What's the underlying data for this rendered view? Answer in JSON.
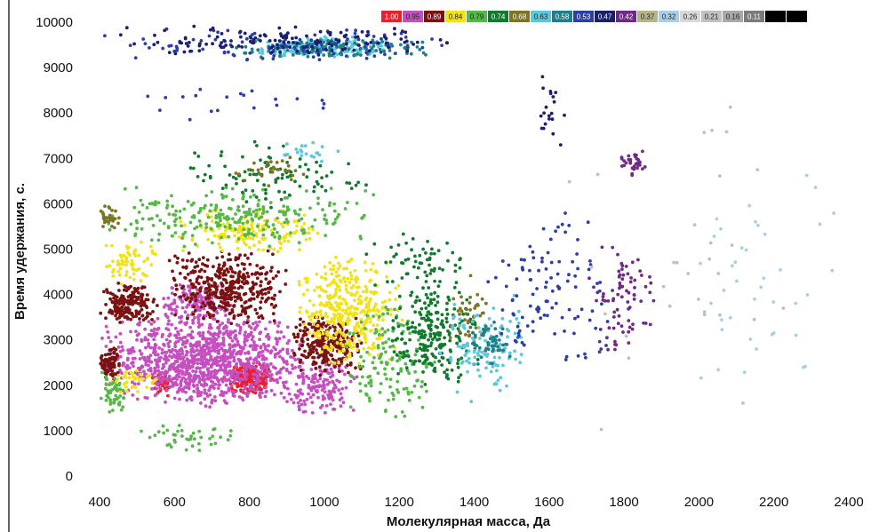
{
  "chart_data": {
    "type": "scatter",
    "title": "",
    "xlabel": "Молекулярная масса, Да",
    "ylabel": "Время удержания, с.",
    "xlim": [
      400,
      2400
    ],
    "ylim": [
      0,
      10000
    ],
    "x_ticks": [
      "400",
      "600",
      "800",
      "1000",
      "1200",
      "1400",
      "1600",
      "1800",
      "2000",
      "2200",
      "2400"
    ],
    "y_ticks": [
      "0",
      "1000",
      "2000",
      "3000",
      "4000",
      "5000",
      "6000",
      "7000",
      "8000",
      "9000",
      "10000"
    ],
    "grid": false,
    "legend_position": "top-right",
    "legend": [
      {
        "label": "1.00",
        "color": "#e8202a"
      },
      {
        "label": "0.95",
        "color": "#c64fc0"
      },
      {
        "label": "0.89",
        "color": "#7a1212"
      },
      {
        "label": "0.84",
        "color": "#f2e218"
      },
      {
        "label": "0.79",
        "color": "#56b848"
      },
      {
        "label": "0.74",
        "color": "#117a2e"
      },
      {
        "label": "0.68",
        "color": "#7d7424"
      },
      {
        "label": "0.63",
        "color": "#5bc8de"
      },
      {
        "label": "0.58",
        "color": "#1f7f88"
      },
      {
        "label": "0.53",
        "color": "#2a3fa8"
      },
      {
        "label": "0.47",
        "color": "#1b1f6e"
      },
      {
        "label": "0.42",
        "color": "#6e2a86"
      },
      {
        "label": "0.37",
        "color": "#b5b58a"
      },
      {
        "label": "0.32",
        "color": "#a9cfe8"
      },
      {
        "label": "0.26",
        "color": "#d8d8d8"
      },
      {
        "label": "0.21",
        "color": "#c0c0c0"
      },
      {
        "label": "0.16",
        "color": "#a8a8a8"
      },
      {
        "label": "0.11",
        "color": "#7a7a7a"
      },
      {
        "label": "",
        "color": "#000000"
      },
      {
        "label": "",
        "color": "#000000"
      }
    ],
    "series": [
      {
        "label": "1.00",
        "color": "#e8202a",
        "clusters": [
          {
            "x": [
              745,
              865
            ],
            "y": [
              1800,
              2500
            ],
            "n": 220
          },
          {
            "x": [
              540,
              600
            ],
            "y": [
              1700,
              2300
            ],
            "n": 40
          }
        ]
      },
      {
        "label": "0.95",
        "color": "#c64fc0",
        "clusters": [
          {
            "x": [
              400,
              960
            ],
            "y": [
              1500,
              3600
            ],
            "n": 1100
          },
          {
            "x": [
              560,
              760
            ],
            "y": [
              3400,
              4300
            ],
            "n": 160
          },
          {
            "x": [
              880,
              1100
            ],
            "y": [
              1300,
              2700
            ],
            "n": 150
          }
        ]
      },
      {
        "label": "0.89",
        "color": "#7a1212",
        "clusters": [
          {
            "x": [
              400,
              560
            ],
            "y": [
              3300,
              4300
            ],
            "n": 180
          },
          {
            "x": [
              580,
              900
            ],
            "y": [
              3300,
              5000
            ],
            "n": 380
          },
          {
            "x": [
              900,
              1110
            ],
            "y": [
              2200,
              3600
            ],
            "n": 260
          },
          {
            "x": [
              400,
              460
            ],
            "y": [
              2100,
              2900
            ],
            "n": 80
          }
        ]
      },
      {
        "label": "0.84",
        "color": "#f2e218",
        "clusters": [
          {
            "x": [
              920,
              1210
            ],
            "y": [
              2400,
              4900
            ],
            "n": 380
          },
          {
            "x": [
              600,
              1000
            ],
            "y": [
              4900,
              5900
            ],
            "n": 160
          },
          {
            "x": [
              400,
              560
            ],
            "y": [
              4200,
              5200
            ],
            "n": 70
          },
          {
            "x": [
              420,
              560
            ],
            "y": [
              1800,
              2400
            ],
            "n": 40
          }
        ]
      },
      {
        "label": "0.79",
        "color": "#56b848",
        "clusters": [
          {
            "x": [
              400,
              1150
            ],
            "y": [
              5000,
              6400
            ],
            "n": 260
          },
          {
            "x": [
              1050,
              1300
            ],
            "y": [
              1100,
              4000
            ],
            "n": 140
          },
          {
            "x": [
              400,
              480
            ],
            "y": [
              1300,
              2400
            ],
            "n": 50
          },
          {
            "x": [
              500,
              760
            ],
            "y": [
              500,
              1200
            ],
            "n": 40
          }
        ]
      },
      {
        "label": "0.74",
        "color": "#117a2e",
        "clusters": [
          {
            "x": [
              1170,
              1420
            ],
            "y": [
              1900,
              4300
            ],
            "n": 240
          },
          {
            "x": [
              600,
              1150
            ],
            "y": [
              5900,
              7400
            ],
            "n": 100
          },
          {
            "x": [
              1100,
              1400
            ],
            "y": [
              4100,
              5400
            ],
            "n": 60
          }
        ]
      },
      {
        "label": "0.68",
        "color": "#7d7424",
        "clusters": [
          {
            "x": [
              400,
              460
            ],
            "y": [
              5400,
              6000
            ],
            "n": 30
          },
          {
            "x": [
              750,
              960
            ],
            "y": [
              6300,
              7100
            ],
            "n": 30
          },
          {
            "x": [
              1320,
              1460
            ],
            "y": [
              2600,
              4600
            ],
            "n": 40
          }
        ]
      },
      {
        "label": "0.63",
        "color": "#5bc8de",
        "clusters": [
          {
            "x": [
              800,
              1210
            ],
            "y": [
              9200,
              9700
            ],
            "n": 170
          },
          {
            "x": [
              1300,
              1560
            ],
            "y": [
              1600,
              4000
            ],
            "n": 120
          },
          {
            "x": [
              850,
              1060
            ],
            "y": [
              6800,
              7400
            ],
            "n": 20
          }
        ]
      },
      {
        "label": "0.58",
        "color": "#1f7f88",
        "clusters": [
          {
            "x": [
              730,
              1300
            ],
            "y": [
              9200,
              9650
            ],
            "n": 140
          },
          {
            "x": [
              1380,
              1520
            ],
            "y": [
              2400,
              3400
            ],
            "n": 50
          }
        ]
      },
      {
        "label": "0.53",
        "color": "#2a3fa8",
        "clusters": [
          {
            "x": [
              1420,
              1780
            ],
            "y": [
              2400,
              6000
            ],
            "n": 110
          },
          {
            "x": [
              400,
              1400
            ],
            "y": [
              9100,
              9900
            ],
            "n": 100
          },
          {
            "x": [
              440,
              1120
            ],
            "y": [
              7700,
              8600
            ],
            "n": 20
          }
        ]
      },
      {
        "label": "0.47",
        "color": "#1b1f6e",
        "clusters": [
          {
            "x": [
              400,
              1400
            ],
            "y": [
              9200,
              9950
            ],
            "n": 140
          },
          {
            "x": [
              1560,
              1650
            ],
            "y": [
              6900,
              9200
            ],
            "n": 20
          }
        ]
      },
      {
        "label": "0.42",
        "color": "#6e2a86",
        "clusters": [
          {
            "x": [
              1700,
              1900
            ],
            "y": [
              2600,
              5400
            ],
            "n": 80
          },
          {
            "x": [
              1780,
              1860
            ],
            "y": [
              6600,
              7200
            ],
            "n": 30
          }
        ]
      },
      {
        "label": "0.32",
        "color": "#a9cfe8",
        "clusters": [
          {
            "x": [
              1900,
              2400
            ],
            "y": [
              1400,
              7000
            ],
            "n": 40
          }
        ]
      },
      {
        "label": "0.21",
        "color": "#c0c0c0",
        "clusters": [
          {
            "x": [
              1600,
              2400
            ],
            "y": [
              600,
              9200
            ],
            "n": 30
          }
        ]
      }
    ]
  }
}
